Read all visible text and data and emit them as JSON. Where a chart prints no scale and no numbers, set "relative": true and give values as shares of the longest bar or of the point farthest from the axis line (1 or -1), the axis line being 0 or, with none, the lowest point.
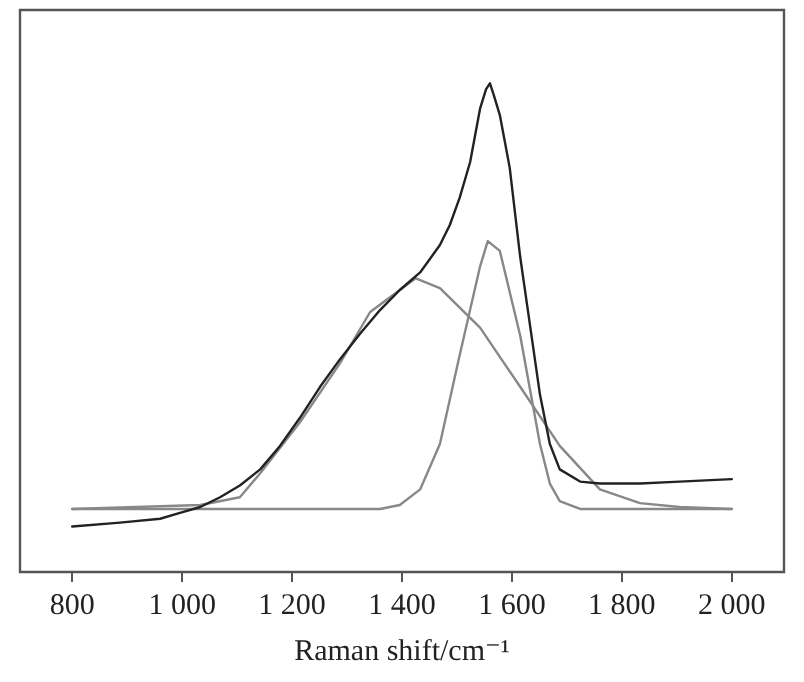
{
  "chart_data": {
    "type": "line",
    "xlabel": "Raman shift/cm⁻¹",
    "relative": true,
    "grid": false,
    "legend": false,
    "marker": "none",
    "line_style": "solid",
    "xlim": [
      705,
      2095
    ],
    "xticks": [
      800,
      {
        "value": 1000,
        "label": "1 000"
      },
      {
        "value": 1200,
        "label": "1 200"
      },
      {
        "value": 1400,
        "label": "1 400"
      },
      {
        "value": 1600,
        "label": "1 600"
      },
      {
        "value": 1800,
        "label": "1 800"
      },
      {
        "value": 2000,
        "label": "2 000"
      }
    ],
    "series": [
      {
        "color": "#222222",
        "x": [
          800,
          887,
          960,
          996,
          1033,
          1069,
          1105,
          1142,
          1178,
          1214,
          1251,
          1287,
          1324,
          1360,
          1396,
          1433,
          1469,
          1487,
          1505,
          1524,
          1542,
          1553,
          1560,
          1567,
          1578,
          1596,
          1615,
          1633,
          1651,
          1669,
          1687,
          1724,
          1760,
          1833,
          1905,
          2000
        ],
        "values": [
          0.093,
          0.101,
          0.109,
          0.121,
          0.133,
          0.153,
          0.177,
          0.21,
          0.258,
          0.315,
          0.379,
          0.435,
          0.488,
          0.536,
          0.577,
          0.613,
          0.669,
          0.71,
          0.766,
          0.839,
          0.948,
          0.988,
          1.0,
          0.976,
          0.935,
          0.827,
          0.645,
          0.504,
          0.363,
          0.262,
          0.21,
          0.185,
          0.181,
          0.181,
          0.185,
          0.19
        ]
      },
      {
        "color": "#888888",
        "x": [
          800,
          1033,
          1105,
          1142,
          1214,
          1287,
          1342,
          1415,
          1425,
          1469,
          1542,
          1615,
          1687,
          1760,
          1833,
          1905,
          2000
        ],
        "values": [
          0.129,
          0.137,
          0.153,
          0.202,
          0.306,
          0.427,
          0.532,
          0.593,
          0.601,
          0.581,
          0.5,
          0.379,
          0.258,
          0.169,
          0.141,
          0.133,
          0.129
        ]
      },
      {
        "color": "#888888",
        "x": [
          800,
          1360,
          1396,
          1433,
          1469,
          1505,
          1542,
          1556,
          1578,
          1615,
          1651,
          1669,
          1687,
          1724,
          2000
        ],
        "values": [
          0.129,
          0.129,
          0.137,
          0.169,
          0.262,
          0.444,
          0.625,
          0.677,
          0.657,
          0.484,
          0.262,
          0.181,
          0.145,
          0.129,
          0.129
        ]
      }
    ]
  }
}
